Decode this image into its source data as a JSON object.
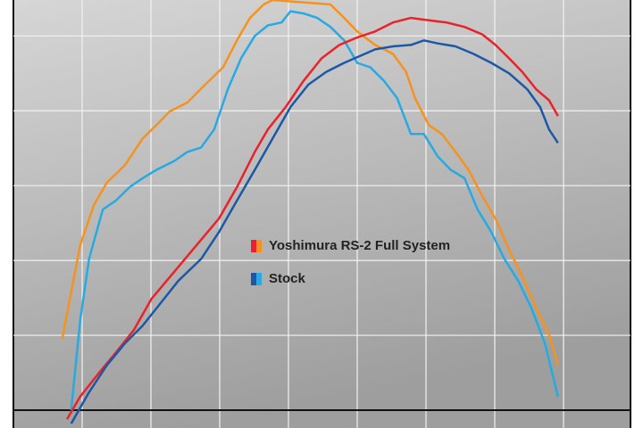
{
  "chart_data": {
    "type": "line",
    "xlim": [
      0,
      9
    ],
    "xticks": [
      0,
      1,
      2,
      3,
      4,
      5,
      6,
      7,
      8,
      9
    ],
    "ylim": [
      0,
      5.48
    ],
    "yticks": [
      0,
      1,
      2,
      3,
      4,
      5
    ],
    "grid": true,
    "legend": [
      {
        "name": "Yoshimura RS-2 Full System",
        "colors": [
          "#e8232b",
          "#f6921e"
        ]
      },
      {
        "name": "Stock",
        "colors": [
          "#1c58a5",
          "#27aae1"
        ]
      }
    ],
    "series": [
      {
        "legend": 0,
        "color": "#f6921e",
        "x": [
          0.71,
          0.97,
          1.17,
          1.36,
          1.62,
          1.88,
          2.08,
          2.27,
          2.53,
          2.79,
          3.05,
          3.25,
          3.44,
          3.64,
          3.77,
          4.61,
          4.81,
          5.0,
          5.26,
          5.52,
          5.71,
          5.84,
          6.04,
          6.23,
          6.43,
          6.62,
          6.82,
          7.01,
          7.21,
          7.4,
          7.6,
          7.79,
          7.92
        ],
        "values": [
          0.95,
          2.2,
          2.74,
          3.04,
          3.27,
          3.63,
          3.81,
          3.99,
          4.11,
          4.35,
          4.58,
          4.94,
          5.24,
          5.42,
          5.48,
          5.42,
          5.24,
          5.06,
          4.88,
          4.76,
          4.52,
          4.17,
          3.81,
          3.69,
          3.45,
          3.21,
          2.86,
          2.56,
          2.14,
          1.79,
          1.37,
          1.01,
          0.6
        ]
      },
      {
        "legend": 1,
        "color": "#27aae1",
        "x": [
          0.84,
          0.97,
          1.1,
          1.3,
          1.49,
          1.69,
          1.88,
          2.08,
          2.34,
          2.53,
          2.73,
          2.92,
          3.12,
          3.31,
          3.51,
          3.7,
          3.9,
          4.03,
          4.22,
          4.42,
          4.61,
          4.81,
          5.0,
          5.19,
          5.39,
          5.58,
          5.78,
          5.97,
          6.17,
          6.36,
          6.56,
          6.75,
          6.95,
          7.14,
          7.34,
          7.53,
          7.73,
          7.92
        ],
        "values": [
          0,
          1.19,
          2.02,
          2.68,
          2.8,
          2.98,
          3.1,
          3.21,
          3.33,
          3.45,
          3.51,
          3.75,
          4.29,
          4.7,
          5.0,
          5.14,
          5.18,
          5.33,
          5.3,
          5.24,
          5.12,
          4.94,
          4.64,
          4.58,
          4.4,
          4.17,
          3.69,
          3.69,
          3.39,
          3.21,
          3.1,
          2.68,
          2.38,
          2.02,
          1.73,
          1.37,
          0.89,
          0.18
        ]
      },
      {
        "legend": 0,
        "color": "#e8232b",
        "x": [
          0.78,
          0.97,
          1.23,
          1.49,
          1.75,
          2.01,
          2.34,
          2.66,
          2.99,
          3.25,
          3.51,
          3.7,
          3.96,
          4.22,
          4.48,
          4.74,
          5.0,
          5.26,
          5.52,
          5.78,
          6.04,
          6.3,
          6.56,
          6.82,
          7.01,
          7.21,
          7.4,
          7.6,
          7.79,
          7.92
        ],
        "values": [
          -0.12,
          0.18,
          0.48,
          0.77,
          1.07,
          1.49,
          1.85,
          2.2,
          2.56,
          2.98,
          3.45,
          3.75,
          4.05,
          4.4,
          4.7,
          4.88,
          4.98,
          5.06,
          5.18,
          5.24,
          5.21,
          5.18,
          5.12,
          5.02,
          4.88,
          4.7,
          4.52,
          4.29,
          4.14,
          3.93
        ]
      },
      {
        "legend": 1,
        "color": "#1c58a5",
        "x": [
          0.84,
          1.1,
          1.36,
          1.62,
          1.88,
          2.14,
          2.4,
          2.73,
          2.99,
          3.25,
          3.51,
          3.77,
          4.03,
          4.29,
          4.55,
          4.81,
          5.06,
          5.26,
          5.52,
          5.78,
          5.97,
          6.17,
          6.43,
          6.69,
          6.95,
          7.21,
          7.47,
          7.66,
          7.79,
          7.92
        ],
        "values": [
          -0.18,
          0.24,
          0.6,
          0.89,
          1.13,
          1.43,
          1.73,
          2.02,
          2.38,
          2.8,
          3.21,
          3.63,
          4.05,
          4.35,
          4.52,
          4.64,
          4.74,
          4.82,
          4.86,
          4.88,
          4.94,
          4.9,
          4.86,
          4.76,
          4.64,
          4.5,
          4.29,
          4.05,
          3.75,
          3.57
        ]
      }
    ]
  }
}
